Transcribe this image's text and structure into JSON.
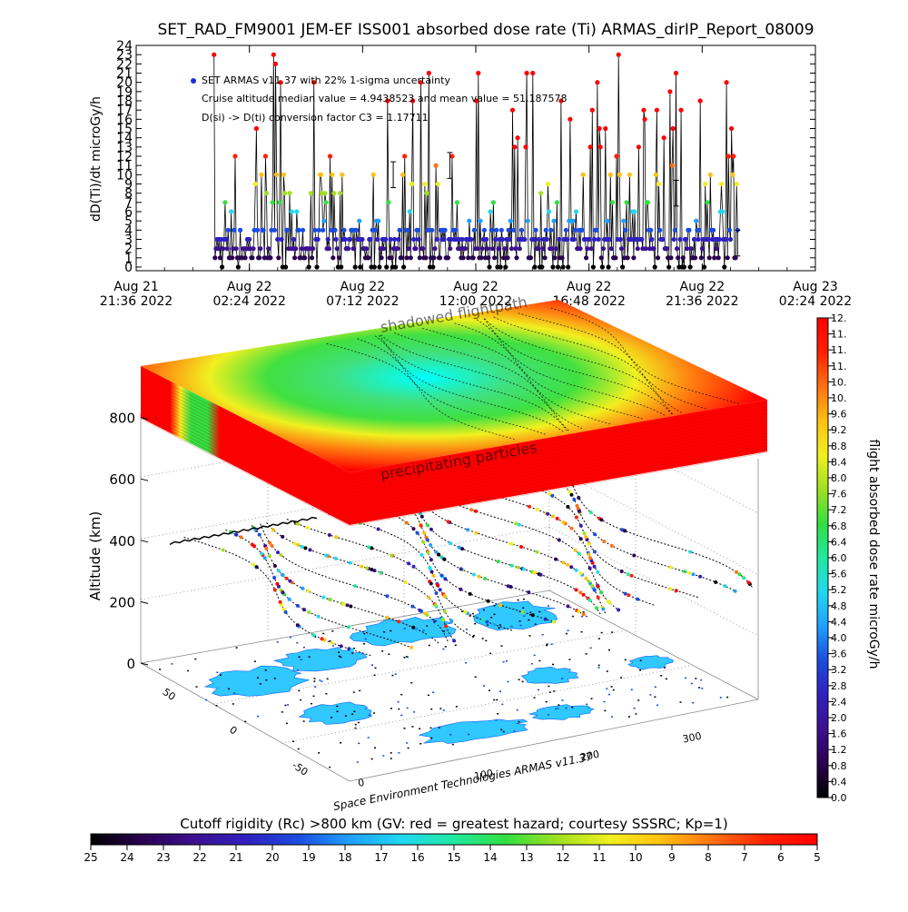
{
  "title": "SET_RAD_FM9001  JEM-EF ISS001 absorbed dose rate (Ti) ARMAS_dirIP_Report_08009",
  "chart_data": [
    {
      "type": "scatter",
      "ylabel": "dD(Ti)/dt microGy/h",
      "ylim": [
        0,
        24
      ],
      "yticks": [
        "0",
        "1",
        "2",
        "3",
        "4",
        "5",
        "6",
        "7",
        "8",
        "9",
        "10",
        "11",
        "12",
        "13",
        "14",
        "15",
        "16",
        "17",
        "18",
        "19",
        "20",
        "21",
        "22",
        "23",
        "24"
      ],
      "xticks": [
        {
          "l1": "Aug 21",
          "l2": "21:36 2022",
          "h": 0
        },
        {
          "l1": "Aug 22",
          "l2": "02:24 2022",
          "h": 4.8
        },
        {
          "l1": "Aug 22",
          "l2": "07:12 2022",
          "h": 9.6
        },
        {
          "l1": "Aug 22",
          "l2": "12:00 2022",
          "h": 14.4
        },
        {
          "l1": "Aug 22",
          "l2": "16:48 2022",
          "h": 19.2
        },
        {
          "l1": "Aug 22",
          "l2": "21:36 2022",
          "h": 24.0
        },
        {
          "l1": "Aug 23",
          "l2": "02:24 2022",
          "h": 28.8
        }
      ],
      "xlim_hours": [
        0,
        28.8
      ],
      "data_start_hours": 3.3,
      "data_end_hours": 25.5,
      "legend": [
        "SET ARMAS v11.37 with 22% 1-sigma uncertainty",
        "Cruise altitude median value = 4.9438523 and mean value = 51.187578",
        "D(si) -> D(ti) conversion factor C3 = 1.17711"
      ],
      "legend_marker_color": "#1b2fd6"
    },
    {
      "type": "surface-3d",
      "zlabel": "Altitude (km)",
      "zticks": [
        "0",
        "200",
        "400",
        "600",
        "800"
      ],
      "xticks": [
        "100",
        "200",
        "300"
      ],
      "yticks": [
        "-50",
        "0",
        "50"
      ],
      "annotations": [
        "shadowed flightpath",
        "precipitating particles"
      ],
      "credit": "Space Environment Technologies ARMAS v11.37"
    }
  ],
  "dose_colorbar": {
    "label": "flight absorbed dose rate microGy/h",
    "ticks": [
      "0.0",
      "0.4",
      "0.8",
      "1.2",
      "1.6",
      "2.0",
      "2.4",
      "2.8",
      "3.2",
      "3.6",
      "4.0",
      "4.4",
      "4.8",
      "5.2",
      "5.6",
      "6.0",
      "6.4",
      "6.8",
      "7.2",
      "7.6",
      "8.0",
      "8.4",
      "8.8",
      "9.2",
      "9.6",
      "10.",
      "10.",
      "11.",
      "11.",
      "11.",
      "12."
    ]
  },
  "rigidity_colorbar": {
    "label": "Cutoff rigidity (Rc) >800 km (GV: red = greatest hazard; courtesy SSSRC; Kp=1)",
    "ticks": [
      "25",
      "24",
      "23",
      "22",
      "21",
      "20",
      "19",
      "18",
      "17",
      "16",
      "15",
      "14",
      "13",
      "12",
      "11",
      "10",
      "9",
      "8",
      "7",
      "6",
      "5"
    ]
  },
  "colors": {
    "scale": [
      "#000000",
      "#2a0050",
      "#3c1090",
      "#3020c0",
      "#1a4ce0",
      "#1fa0ff",
      "#20d8f0",
      "#20e8a0",
      "#30e040",
      "#a0e020",
      "#f0f020",
      "#ffc010",
      "#ff7010",
      "#ff2000",
      "#ff0000"
    ],
    "land": "#30c8ff",
    "sea": "#ffffff"
  }
}
